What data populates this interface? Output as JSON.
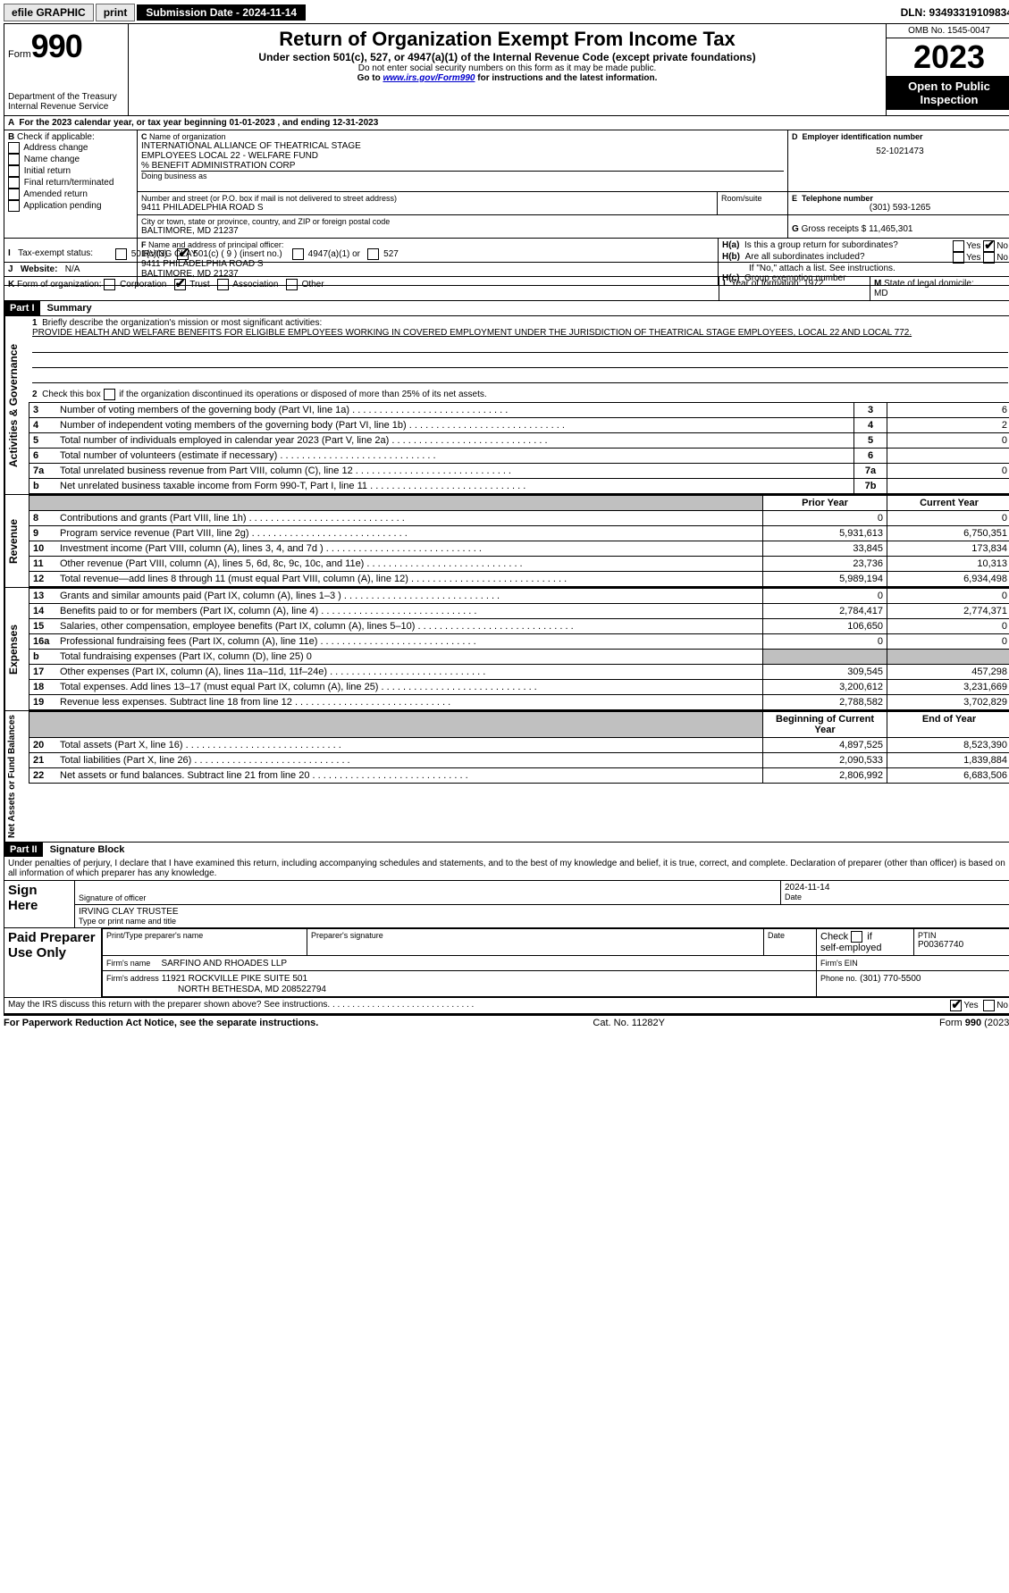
{
  "topbar": {
    "efile": "efile GRAPHIC",
    "print": "print",
    "subdate_label": "Submission Date - 2024-11-14",
    "dln": "DLN: 93493319109834"
  },
  "header": {
    "form_word": "Form",
    "form_num": "990",
    "dept": "Department of the Treasury",
    "irs": "Internal Revenue Service",
    "title": "Return of Organization Exempt From Income Tax",
    "sub1": "Under section 501(c), 527, or 4947(a)(1) of the Internal Revenue Code (except private foundations)",
    "sub2": "Do not enter social security numbers on this form as it may be made public.",
    "sub3_pre": "Go to ",
    "sub3_link": "www.irs.gov/Form990",
    "sub3_post": " for instructions and the latest information.",
    "omb": "OMB No. 1545-0047",
    "year": "2023",
    "open": "Open to Public Inspection"
  },
  "A": {
    "line": "For the 2023 calendar year, or tax year beginning 01-01-2023    , and ending 12-31-2023"
  },
  "B": {
    "label": "Check if applicable:",
    "items": [
      "Address change",
      "Name change",
      "Initial return",
      "Final return/terminated",
      "Amended return",
      "Application pending"
    ]
  },
  "C": {
    "name_label": "Name of organization",
    "name1": "INTERNATIONAL ALLIANCE OF THEATRICAL STAGE",
    "name2": "EMPLOYEES LOCAL 22 - WELFARE FUND",
    "name3": "% BENEFIT ADMINISTRATION CORP",
    "dba_label": "Doing business as",
    "street_label": "Number and street (or P.O. box if mail is not delivered to street address)",
    "room_label": "Room/suite",
    "street": "9411 PHILADELPHIA ROAD S",
    "city_label": "City or town, state or province, country, and ZIP or foreign postal code",
    "city": "BALTIMORE, MD  21237"
  },
  "D": {
    "label": "Employer identification number",
    "val": "52-1021473"
  },
  "E": {
    "label": "Telephone number",
    "val": "(301) 593-1265"
  },
  "G": {
    "label": "Gross receipts $",
    "val": "11,465,301"
  },
  "F": {
    "label": "Name and address of principal officer:",
    "name": "IRVING CLAY",
    "street": "9411 PHILADELPHIA ROAD S",
    "city": "BALTIMORE, MD  21237"
  },
  "H": {
    "a": "Is this a group return for subordinates?",
    "b": "Are all subordinates included?",
    "b2": "If \"No,\" attach a list. See instructions.",
    "c": "Group exemption number"
  },
  "I": {
    "label": "Tax-exempt status:",
    "opts": {
      "c3": "501(c)(3)",
      "c": "501(c) ( 9 ) (insert no.)",
      "a1": "4947(a)(1) or",
      "s527": "527"
    }
  },
  "J": {
    "label": "Website:",
    "val": "N/A"
  },
  "K": {
    "label": "Form of organization:",
    "opts": [
      "Corporation",
      "Trust",
      "Association",
      "Other"
    ]
  },
  "L": {
    "label": "Year of formation:",
    "val": "1972"
  },
  "M": {
    "label": "State of legal domicile:",
    "val": "MD"
  },
  "part1": {
    "bar": "Part I",
    "title": "Summary",
    "l1_q": "Briefly describe the organization's mission or most significant activities:",
    "l1_a": "PROVIDE HEALTH AND WELFARE BENEFITS FOR ELIGIBLE EMPLOYEES WORKING IN COVERED EMPLOYMENT UNDER THE JURISDICTION OF THEATRICAL STAGE EMPLOYEES, LOCAL 22 AND LOCAL 772.",
    "l2": "Check this box      if the organization discontinued its operations or disposed of more than 25% of its net assets.",
    "rows_gov": [
      {
        "n": "3",
        "t": "Number of voting members of the governing body (Part VI, line 1a)",
        "b": "3",
        "v": "6"
      },
      {
        "n": "4",
        "t": "Number of independent voting members of the governing body (Part VI, line 1b)",
        "b": "4",
        "v": "2"
      },
      {
        "n": "5",
        "t": "Total number of individuals employed in calendar year 2023 (Part V, line 2a)",
        "b": "5",
        "v": "0"
      },
      {
        "n": "6",
        "t": "Total number of volunteers (estimate if necessary)",
        "b": "6",
        "v": ""
      },
      {
        "n": "7a",
        "t": "Total unrelated business revenue from Part VIII, column (C), line 12",
        "b": "7a",
        "v": "0"
      },
      {
        "n": "b",
        "t": "Net unrelated business taxable income from Form 990-T, Part I, line 11",
        "b": "7b",
        "v": ""
      }
    ],
    "hdr_prior": "Prior Year",
    "hdr_curr": "Current Year",
    "rows_rev": [
      {
        "n": "8",
        "t": "Contributions and grants (Part VIII, line 1h)",
        "p": "0",
        "c": "0"
      },
      {
        "n": "9",
        "t": "Program service revenue (Part VIII, line 2g)",
        "p": "5,931,613",
        "c": "6,750,351"
      },
      {
        "n": "10",
        "t": "Investment income (Part VIII, column (A), lines 3, 4, and 7d )",
        "p": "33,845",
        "c": "173,834"
      },
      {
        "n": "11",
        "t": "Other revenue (Part VIII, column (A), lines 5, 6d, 8c, 9c, 10c, and 11e)",
        "p": "23,736",
        "c": "10,313"
      },
      {
        "n": "12",
        "t": "Total revenue—add lines 8 through 11 (must equal Part VIII, column (A), line 12)",
        "p": "5,989,194",
        "c": "6,934,498"
      }
    ],
    "rows_exp": [
      {
        "n": "13",
        "t": "Grants and similar amounts paid (Part IX, column (A), lines 1–3 )",
        "p": "0",
        "c": "0"
      },
      {
        "n": "14",
        "t": "Benefits paid to or for members (Part IX, column (A), line 4)",
        "p": "2,784,417",
        "c": "2,774,371"
      },
      {
        "n": "15",
        "t": "Salaries, other compensation, employee benefits (Part IX, column (A), lines 5–10)",
        "p": "106,650",
        "c": "0"
      },
      {
        "n": "16a",
        "t": "Professional fundraising fees (Part IX, column (A), line 11e)",
        "p": "0",
        "c": "0"
      }
    ],
    "row_16b": {
      "n": "b",
      "t": "Total fundraising expenses (Part IX, column (D), line 25) 0"
    },
    "rows_exp2": [
      {
        "n": "17",
        "t": "Other expenses (Part IX, column (A), lines 11a–11d, 11f–24e)",
        "p": "309,545",
        "c": "457,298"
      },
      {
        "n": "18",
        "t": "Total expenses. Add lines 13–17 (must equal Part IX, column (A), line 25)",
        "p": "3,200,612",
        "c": "3,231,669"
      },
      {
        "n": "19",
        "t": "Revenue less expenses. Subtract line 18 from line 12",
        "p": "2,788,582",
        "c": "3,702,829"
      }
    ],
    "hdr_beg": "Beginning of Current Year",
    "hdr_end": "End of Year",
    "rows_na": [
      {
        "n": "20",
        "t": "Total assets (Part X, line 16)",
        "p": "4,897,525",
        "c": "8,523,390"
      },
      {
        "n": "21",
        "t": "Total liabilities (Part X, line 26)",
        "p": "2,090,533",
        "c": "1,839,884"
      },
      {
        "n": "22",
        "t": "Net assets or fund balances. Subtract line 21 from line 20",
        "p": "2,806,992",
        "c": "6,683,506"
      }
    ],
    "vlab_gov": "Activities & Governance",
    "vlab_rev": "Revenue",
    "vlab_exp": "Expenses",
    "vlab_na": "Net Assets or Fund Balances"
  },
  "part2": {
    "bar": "Part II",
    "title": "Signature Block",
    "decl": "Under penalties of perjury, I declare that I have examined this return, including accompanying schedules and statements, and to the best of my knowledge and belief, it is true, correct, and complete. Declaration of preparer (other than officer) is based on all information of which preparer has any knowledge."
  },
  "sign": {
    "here": "Sign Here",
    "sig_label": "Signature of officer",
    "date_label": "Date",
    "date_val": "2024-11-14",
    "name": "IRVING CLAY TRUSTEE",
    "name_label": "Type or print name and title"
  },
  "paid": {
    "label": "Paid Preparer Use Only",
    "pt_name_label": "Print/Type preparer's name",
    "sig_label": "Preparer's signature",
    "date_label": "Date",
    "check_label": "Check         if self-employed",
    "ptin_label": "PTIN",
    "ptin": "P00367740",
    "firm_name_label": "Firm's name",
    "firm_name": "SARFINO AND RHOADES LLP",
    "ein_label": "Firm's EIN",
    "addr_label": "Firm's address",
    "addr1": "11921 ROCKVILLE PIKE SUITE 501",
    "addr2": "NORTH BETHESDA, MD  208522794",
    "phone_label": "Phone no.",
    "phone": "(301) 770-5500"
  },
  "discuss": "May the IRS discuss this return with the preparer shown above? See instructions.",
  "footer": {
    "left": "For Paperwork Reduction Act Notice, see the separate instructions.",
    "mid": "Cat. No. 11282Y",
    "right": "Form 990 (2023)"
  },
  "yesno": {
    "yes": "Yes",
    "no": "No"
  }
}
